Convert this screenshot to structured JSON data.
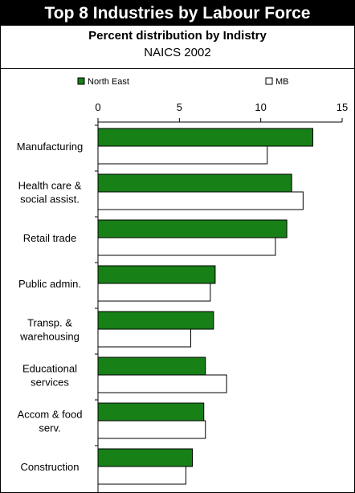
{
  "header": {
    "title": "Top 8 Industries by Labour Force",
    "subtitle": "Percent distribution by Indistry",
    "subtitle2": "NAICS 2002"
  },
  "colors": {
    "north_east": "#178017",
    "mb": "#ffffff",
    "border": "#000000"
  },
  "chart_data": {
    "type": "bar",
    "orientation": "horizontal",
    "categories": [
      [
        "Manufacturing"
      ],
      [
        "Health care &",
        "social assist."
      ],
      [
        "Retail trade"
      ],
      [
        "Public admin."
      ],
      [
        "Transp. &",
        "warehousing"
      ],
      [
        "Educational",
        "services"
      ],
      [
        "Accom & food",
        "serv."
      ],
      [
        "Construction"
      ]
    ],
    "series": [
      {
        "name": "North East",
        "values": [
          13.2,
          11.9,
          11.6,
          7.2,
          7.1,
          6.6,
          6.5,
          5.8
        ]
      },
      {
        "name": "MB",
        "values": [
          10.4,
          12.6,
          10.9,
          6.9,
          5.7,
          7.9,
          6.6,
          5.4
        ]
      }
    ],
    "xlim": [
      0,
      15
    ],
    "xticks": [
      0,
      5,
      10,
      15
    ],
    "legend_position": "top",
    "grid": false
  }
}
